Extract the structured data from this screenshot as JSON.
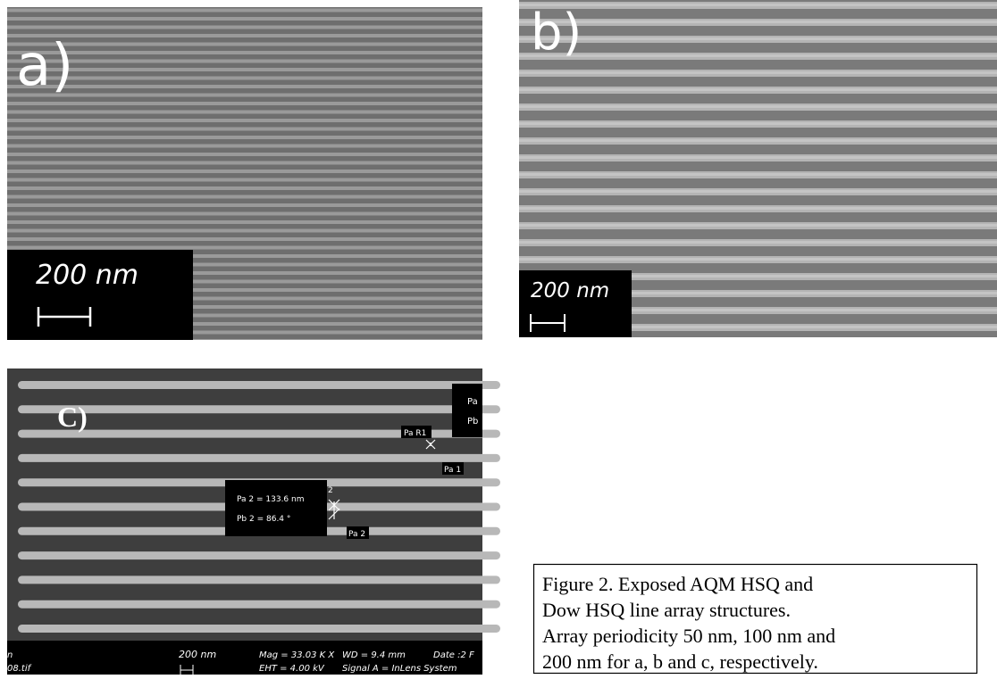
{
  "panels": [
    {
      "label": "a)",
      "scale_bar": "200 nm"
    },
    {
      "label": "b)",
      "scale_bar": "200 nm"
    },
    {
      "label": "C)",
      "scale_bar": "200 nm",
      "annotations": [
        "Pa",
        "Pb",
        "Pa R1",
        "Pa 1",
        "Pa 2 = 133.6 nm",
        "Pb 2 = 86.4 °",
        "Pa 2",
        "2"
      ],
      "info_bar": [
        "n",
        "08.tif",
        "Mag =  33.03 K X",
        "EHT =  4.00 kV",
        "WD =  9.4 mm",
        "Date :2 F",
        "Signal A = InLens System"
      ]
    }
  ],
  "caption": {
    "lines": [
      "Figure 2. Exposed AQM HSQ and",
      "Dow HSQ line array structures.",
      "Array periodicity 50 nm, 100 nm and",
      "200 nm for a, b and c, respectively."
    ]
  }
}
